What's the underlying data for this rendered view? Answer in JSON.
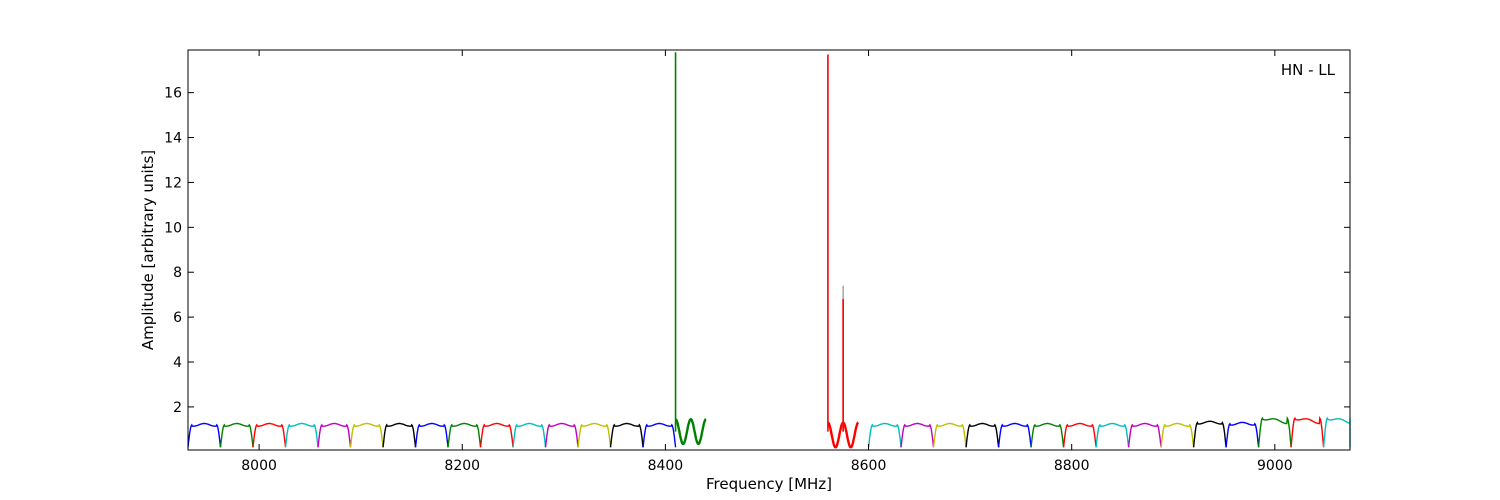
{
  "chart_data": {
    "type": "line",
    "title": "",
    "annotation": "HN - LL",
    "annotation_position": "top-right",
    "xlabel": "Frequency [MHz]",
    "ylabel": "Amplitude [arbitrary units]",
    "xlim": [
      7930,
      9074
    ],
    "ylim": [
      0.08,
      17.9
    ],
    "x_ticks": [
      8000,
      8200,
      8400,
      8600,
      8800,
      9000
    ],
    "y_ticks": [
      2,
      4,
      6,
      8,
      10,
      12,
      14,
      16
    ],
    "grid": false,
    "legend": "none",
    "palette": [
      "#0000ff",
      "#008000",
      "#ff0000",
      "#00bfbf",
      "#bf00bf",
      "#bfbf00",
      "#000000"
    ],
    "channel_width": 32,
    "first_channel_start": 7930,
    "channels": [
      {
        "start": 7930,
        "color": "#0000ff",
        "level": 1.2
      },
      {
        "start": 7962,
        "color": "#008000",
        "level": 1.2
      },
      {
        "start": 7994,
        "color": "#ff0000",
        "level": 1.2
      },
      {
        "start": 8026,
        "color": "#00bfbf",
        "level": 1.2
      },
      {
        "start": 8058,
        "color": "#bf00bf",
        "level": 1.2
      },
      {
        "start": 8090,
        "color": "#bfbf00",
        "level": 1.2
      },
      {
        "start": 8122,
        "color": "#000000",
        "level": 1.2
      },
      {
        "start": 8154,
        "color": "#0000ff",
        "level": 1.2
      },
      {
        "start": 8186,
        "color": "#008000",
        "level": 1.2
      },
      {
        "start": 8218,
        "color": "#ff0000",
        "level": 1.2
      },
      {
        "start": 8250,
        "color": "#00bfbf",
        "level": 1.2
      },
      {
        "start": 8282,
        "color": "#bf00bf",
        "level": 1.2
      },
      {
        "start": 8314,
        "color": "#bfbf00",
        "level": 1.2
      },
      {
        "start": 8346,
        "color": "#000000",
        "level": 1.2
      },
      {
        "start": 8378,
        "color": "#0000ff",
        "level": 1.2
      },
      {
        "start": 8600,
        "color": "#00bfbf",
        "level": 1.2
      },
      {
        "start": 8632,
        "color": "#bf00bf",
        "level": 1.2
      },
      {
        "start": 8664,
        "color": "#bfbf00",
        "level": 1.2
      },
      {
        "start": 8696,
        "color": "#000000",
        "level": 1.2
      },
      {
        "start": 8728,
        "color": "#0000ff",
        "level": 1.2
      },
      {
        "start": 8760,
        "color": "#008000",
        "level": 1.2
      },
      {
        "start": 8792,
        "color": "#ff0000",
        "level": 1.2
      },
      {
        "start": 8824,
        "color": "#00bfbf",
        "level": 1.2
      },
      {
        "start": 8856,
        "color": "#bf00bf",
        "level": 1.2
      },
      {
        "start": 8888,
        "color": "#bfbf00",
        "level": 1.2
      },
      {
        "start": 8920,
        "color": "#000000",
        "level": 1.3
      },
      {
        "start": 8952,
        "color": "#0000ff",
        "level": 1.25
      },
      {
        "start": 8984,
        "color": "#008000",
        "level": 1.5
      },
      {
        "start": 9016,
        "color": "#ff0000",
        "level": 1.5
      },
      {
        "start": 9048,
        "color": "#00bfbf",
        "level": 1.5
      }
    ],
    "peaks": [
      {
        "x": 8410,
        "y": 17.8,
        "color": "#008000"
      },
      {
        "x": 8560,
        "y": 17.7,
        "color": "#ff0000"
      },
      {
        "x": 8575,
        "y": 7.4,
        "color": "#aaaaaa"
      },
      {
        "x": 8575,
        "y": 6.8,
        "color": "#ff0000"
      }
    ],
    "ripple_segments": [
      {
        "color": "#008000",
        "x_start": 8410,
        "x_end": 8440,
        "center_y": 0.9,
        "amplitude": 0.55
      },
      {
        "color": "#ff0000",
        "x_start": 8560,
        "x_end": 8590,
        "center_y": 0.75,
        "amplitude": 0.55
      }
    ]
  }
}
